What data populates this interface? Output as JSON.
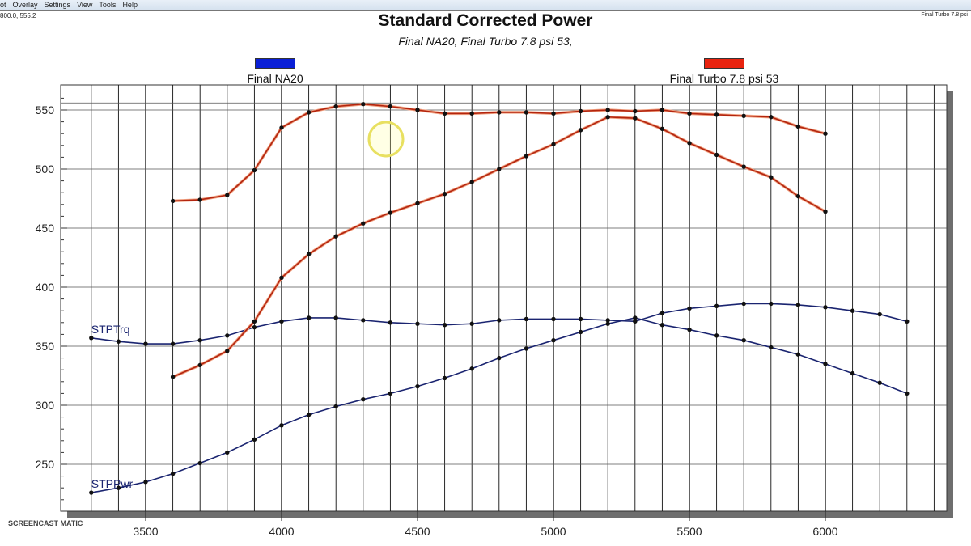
{
  "menu": [
    "ot",
    "Overlay",
    "Settings",
    "View",
    "Tools",
    "Help"
  ],
  "cursor_readout": "800.0, 555.2",
  "corner_label": "Final Turbo 7.8 psi",
  "watermark": "SCREENCAST MATIC",
  "chart_data": {
    "type": "line",
    "title": "Standard Corrected Power",
    "subtitle": "Final NA20, Final Turbo 7.8 psi 53,",
    "xlabel": "",
    "ylabel": "",
    "xlim": [
      3200,
      6450
    ],
    "ylim": [
      210,
      570
    ],
    "xticks": [
      3500,
      4000,
      4500,
      5000,
      5500,
      6000
    ],
    "yticks": [
      250,
      300,
      350,
      400,
      450,
      500,
      550
    ],
    "legend": [
      {
        "name": "Final NA20",
        "color": "#0a1fd6"
      },
      {
        "name": "Final Turbo 7.8 psi 53",
        "color": "#e8230f"
      }
    ],
    "series": [
      {
        "name": "STPTrq",
        "run": "Final NA20",
        "color": "#1a2470",
        "x": [
          3300,
          3400,
          3500,
          3600,
          3700,
          3800,
          3900,
          4000,
          4100,
          4200,
          4300,
          4400,
          4500,
          4600,
          4700,
          4800,
          4900,
          5000,
          5100,
          5200,
          5300,
          5400,
          5500,
          5600,
          5700,
          5800,
          5900,
          6000,
          6100,
          6200,
          6300
        ],
        "y": [
          357,
          354,
          352,
          352,
          355,
          359,
          366,
          371,
          374,
          374,
          372,
          370,
          369,
          368,
          369,
          372,
          373,
          373,
          373,
          372,
          371,
          378,
          382,
          384,
          386,
          386,
          385,
          383,
          380,
          377,
          371
        ]
      },
      {
        "name": "STPPwr",
        "run": "Final NA20",
        "color": "#1a2470",
        "x": [
          3300,
          3400,
          3500,
          3600,
          3700,
          3800,
          3900,
          4000,
          4100,
          4200,
          4300,
          4400,
          4500,
          4600,
          4700,
          4800,
          4900,
          5000,
          5100,
          5200,
          5300,
          5400,
          5500,
          5600,
          5700,
          5800,
          5900,
          6000,
          6100,
          6200,
          6300
        ],
        "y": [
          226,
          230,
          235,
          242,
          251,
          260,
          271,
          283,
          292,
          299,
          305,
          310,
          316,
          323,
          331,
          340,
          348,
          355,
          362,
          369,
          374,
          368,
          364,
          359,
          355,
          349,
          343,
          335,
          327,
          319,
          310
        ]
      },
      {
        "name": "STPTrq",
        "run": "Final Turbo 7.8 psi 53",
        "color": "#b3250f",
        "x": [
          3600,
          3700,
          3800,
          3900,
          4000,
          4100,
          4200,
          4300,
          4400,
          4500,
          4600,
          4700,
          4800,
          4900,
          5000,
          5100,
          5200,
          5300,
          5400,
          5500,
          5600,
          5700,
          5800,
          5900,
          6000
        ],
        "y": [
          473,
          474,
          478,
          499,
          535,
          548,
          553,
          555,
          553,
          550,
          547,
          547,
          548,
          548,
          547,
          549,
          550,
          549,
          550,
          547,
          546,
          545,
          544,
          536,
          530
        ]
      },
      {
        "name": "STPPwr",
        "run": "Final Turbo 7.8 psi 53",
        "color": "#b3250f",
        "x": [
          3600,
          3700,
          3800,
          3900,
          4000,
          4100,
          4200,
          4300,
          4400,
          4500,
          4600,
          4700,
          4800,
          4900,
          5000,
          5100,
          5200,
          5300,
          5400,
          5500,
          5600,
          5700,
          5800,
          5900,
          6000
        ],
        "y": [
          324,
          334,
          346,
          371,
          408,
          428,
          443,
          454,
          463,
          471,
          479,
          489,
          500,
          511,
          521,
          533,
          544,
          543,
          534,
          522,
          512,
          502,
          493,
          477,
          464
        ]
      }
    ],
    "annotations": [
      "STPTrq",
      "STPPwr"
    ]
  }
}
